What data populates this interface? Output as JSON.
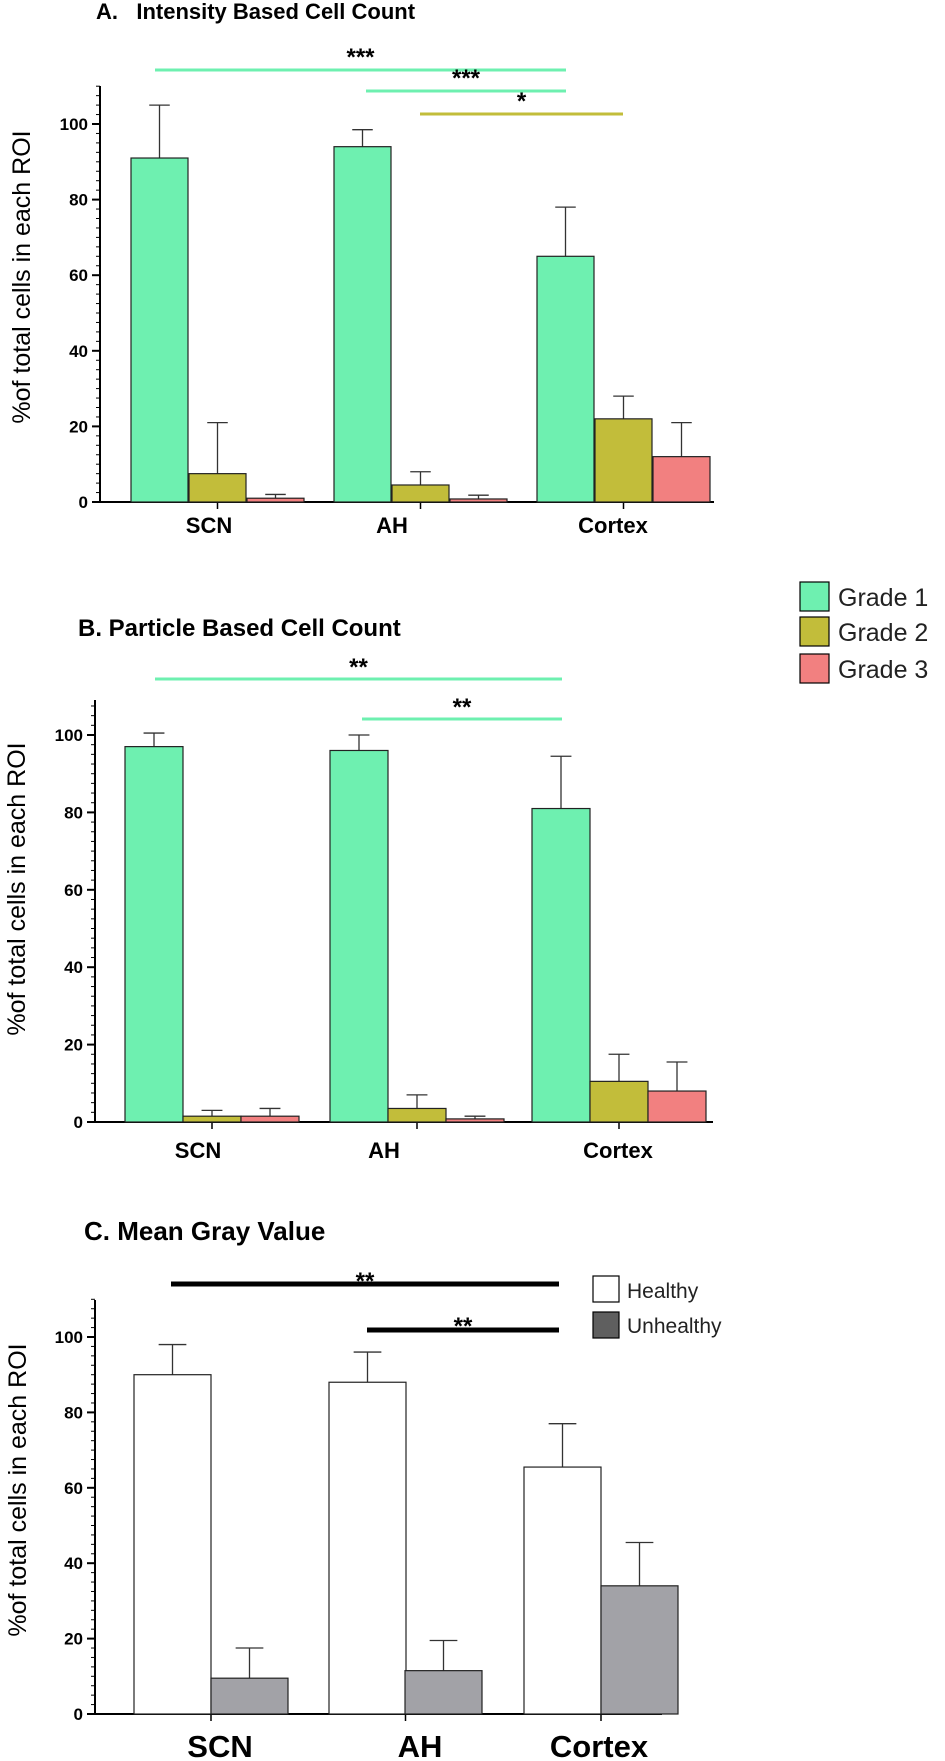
{
  "colors": {
    "grade1": "#6ef0b0",
    "grade2": "#c2bd3a",
    "grade3": "#f28080",
    "healthy": "#ffffff",
    "unhealthy": "#a2a2a7",
    "legend_unhealthy": "#5f5f5f",
    "sig_green": "#6ef0b0",
    "sig_olive": "#c2bd3a",
    "sig_black": "#000000"
  },
  "legend_grades": [
    {
      "label": "Grade 1",
      "color": "#6ef0b0"
    },
    {
      "label": "Grade 2",
      "color": "#c2bd3a"
    },
    {
      "label": "Grade 3",
      "color": "#f28080"
    }
  ],
  "legend_health": [
    {
      "label": "Healthy",
      "color": "#ffffff"
    },
    {
      "label": "Unhealthy",
      "color": "#5f5f5f"
    }
  ],
  "chart_data": [
    {
      "type": "bar",
      "title": "A.   Intensity Based Cell Count",
      "ylabel": "%of total cells in each ROI",
      "xlabel": "",
      "ylim": [
        0,
        110
      ],
      "yticks": [
        "0",
        "20",
        "40",
        "60",
        "80",
        "100"
      ],
      "categories": [
        "SCN",
        "AH",
        "Cortex"
      ],
      "series": [
        {
          "name": "Grade 1",
          "color": "#6ef0b0",
          "values": [
            91,
            94,
            65
          ],
          "errors": [
            14,
            4.5,
            13
          ]
        },
        {
          "name": "Grade 2",
          "color": "#c2bd3a",
          "values": [
            7.5,
            4.5,
            22
          ],
          "errors": [
            13.5,
            3.5,
            6
          ]
        },
        {
          "name": "Grade 3",
          "color": "#f28080",
          "values": [
            1,
            0.8,
            12
          ],
          "errors": [
            1,
            1,
            9
          ]
        }
      ],
      "significance": [
        {
          "from": "SCN",
          "to": "Cortex",
          "series": "Grade 1",
          "label": "***",
          "color": "#6ef0b0"
        },
        {
          "from": "AH",
          "to": "Cortex",
          "series": "Grade 1",
          "label": "***",
          "color": "#6ef0b0"
        },
        {
          "from": "AH",
          "to": "Cortex",
          "series": "Grade 2",
          "label": "*",
          "color": "#c2bd3a"
        }
      ]
    },
    {
      "type": "bar",
      "title": "B. Particle Based Cell Count",
      "ylabel": "%of total cells in each ROI",
      "xlabel": "",
      "ylim": [
        0,
        110
      ],
      "yticks": [
        "0",
        "20",
        "40",
        "60",
        "80",
        "100"
      ],
      "categories": [
        "SCN",
        "AH",
        "Cortex"
      ],
      "series": [
        {
          "name": "Grade 1",
          "color": "#6ef0b0",
          "values": [
            97,
            96,
            81
          ],
          "errors": [
            3.5,
            4,
            13.5
          ]
        },
        {
          "name": "Grade 2",
          "color": "#c2bd3a",
          "values": [
            1.5,
            3.5,
            10.5
          ],
          "errors": [
            1.5,
            3.5,
            7
          ]
        },
        {
          "name": "Grade 3",
          "color": "#f28080",
          "values": [
            1.5,
            0.8,
            8
          ],
          "errors": [
            2,
            0.7,
            7.5
          ]
        }
      ],
      "significance": [
        {
          "from": "SCN",
          "to": "Cortex",
          "series": "Grade 1",
          "label": "**",
          "color": "#6ef0b0"
        },
        {
          "from": "AH",
          "to": "Cortex",
          "series": "Grade 1",
          "label": "**",
          "color": "#6ef0b0"
        }
      ]
    },
    {
      "type": "bar",
      "title": "C. Mean Gray Value",
      "ylabel": "%of total cells in each ROI",
      "xlabel": "",
      "ylim": [
        0,
        110
      ],
      "yticks": [
        "0",
        "20",
        "40",
        "60",
        "80",
        "100"
      ],
      "categories": [
        "SCN",
        "AH",
        "Cortex"
      ],
      "series": [
        {
          "name": "Healthy",
          "color": "#ffffff",
          "values": [
            90,
            88,
            65.5
          ],
          "errors": [
            8,
            8,
            11.5
          ]
        },
        {
          "name": "Unhealthy",
          "color": "#a2a2a7",
          "values": [
            9.5,
            11.5,
            34
          ],
          "errors": [
            8,
            8,
            11.5
          ]
        }
      ],
      "significance": [
        {
          "from": "SCN",
          "to": "Cortex",
          "series": "Healthy",
          "label": "**",
          "color": "#000000"
        },
        {
          "from": "AH",
          "to": "Cortex",
          "series": "Healthy",
          "label": "**",
          "color": "#000000"
        }
      ]
    }
  ]
}
